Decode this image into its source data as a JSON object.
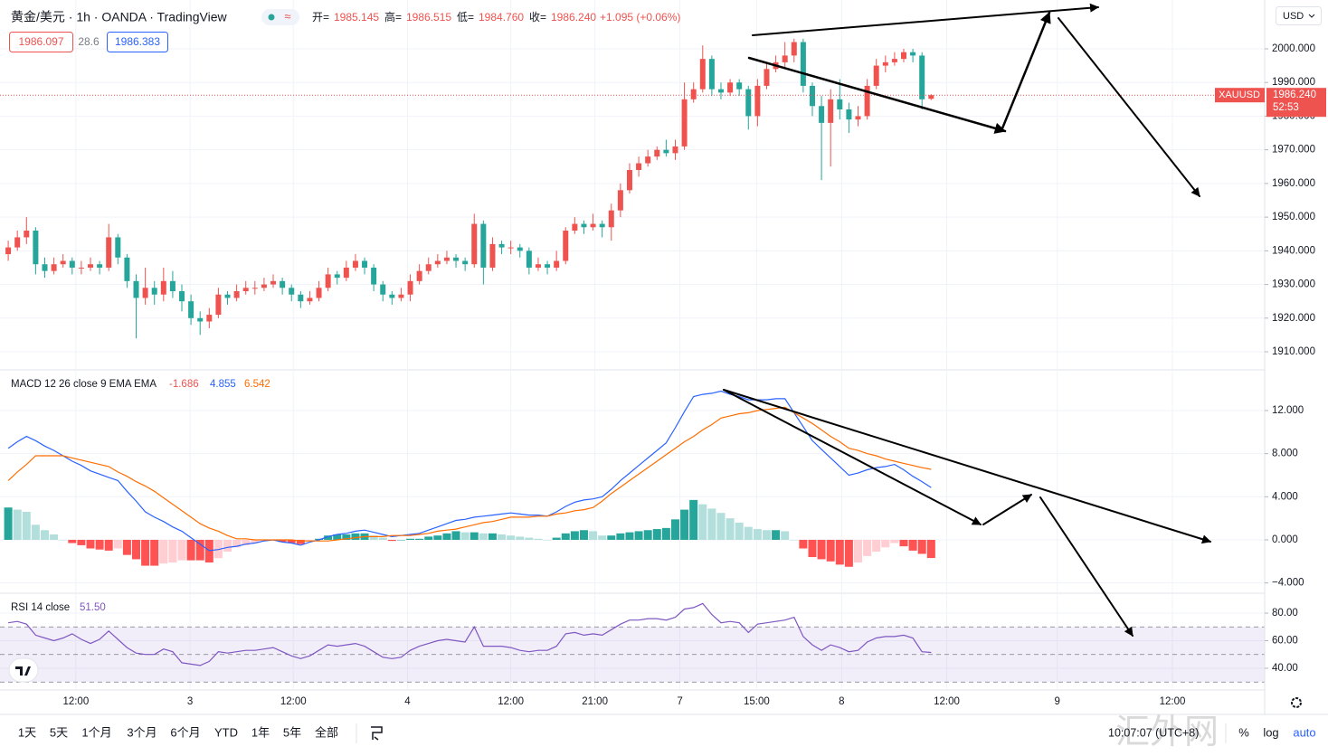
{
  "header": {
    "symbol": "黄金/美元 · 1h · OANDA · TradingView",
    "badge": "≈",
    "ohlc": [
      {
        "key": "开=",
        "value": "1985.145"
      },
      {
        "key": "高=",
        "value": "1986.515"
      },
      {
        "key": "低=",
        "value": "1984.760"
      },
      {
        "key": "收=",
        "value": "1986.240"
      }
    ],
    "change": "+1.095 (+0.06%)",
    "bid": "1986.097",
    "spread": "28.6",
    "ask": "1986.383",
    "currency": "USD"
  },
  "chart_data": [
    {
      "type": "candlestick",
      "grid": true,
      "up_color": "#ef5350",
      "down_color": "#26a69a",
      "xlim": [
        -0.9,
        137.5
      ],
      "ylim": [
        1904.9,
        2014.5
      ],
      "xticks": [
        {
          "value": 7.4,
          "label": "12:00"
        },
        {
          "value": 19.9,
          "label": "3"
        },
        {
          "value": 31.2,
          "label": "12:00"
        },
        {
          "value": 43.7,
          "label": "4"
        },
        {
          "value": 55.0,
          "label": "12:00"
        },
        {
          "value": 64.2,
          "label": "21:00"
        },
        {
          "value": 73.5,
          "label": "7"
        },
        {
          "value": 81.9,
          "label": "15:00"
        },
        {
          "value": 91.2,
          "label": "8"
        },
        {
          "value": 102.7,
          "label": "12:00"
        },
        {
          "value": 114.8,
          "label": "9"
        },
        {
          "value": 127.4,
          "label": "12:00"
        }
      ],
      "yticks": [
        {
          "value": 1910,
          "label": "1910.000"
        },
        {
          "value": 1920,
          "label": "1920.000"
        },
        {
          "value": 1930,
          "label": "1930.000"
        },
        {
          "value": 1940,
          "label": "1940.000"
        },
        {
          "value": 1950,
          "label": "1950.000"
        },
        {
          "value": 1960,
          "label": "1960.000"
        },
        {
          "value": 1970,
          "label": "1970.000"
        },
        {
          "value": 1980,
          "label": "1980.000"
        },
        {
          "value": 1990,
          "label": "1990.000"
        },
        {
          "value": 2000,
          "label": "2000.000"
        }
      ],
      "open": [
        1939,
        1941,
        1944,
        1946,
        1936,
        1934,
        1936,
        1937,
        1935,
        1935,
        1936,
        1935,
        1944,
        1938,
        1931,
        1926,
        1929,
        1927,
        1931,
        1928,
        1925,
        1920,
        1919,
        1921,
        1927,
        1926,
        1928,
        1929,
        1929,
        1930,
        1931,
        1929,
        1927,
        1925,
        1926,
        1929,
        1933,
        1932,
        1935,
        1937,
        1935,
        1930,
        1927,
        1926,
        1927,
        1931,
        1934,
        1936,
        1937,
        1938,
        1937,
        1936,
        1948,
        1935,
        1942,
        1941,
        1941,
        1940,
        1935,
        1936,
        1935,
        1937,
        1946,
        1948,
        1947,
        1948,
        1947,
        1952,
        1958,
        1964,
        1966,
        1968,
        1970,
        1969,
        1971,
        1985,
        1988,
        1997,
        1988,
        1987,
        1990,
        1988,
        1980,
        1989,
        1994,
        1996,
        1998,
        2002,
        1989,
        1983,
        1978,
        1985,
        1982,
        1979,
        1980,
        1989,
        1995,
        1996,
        1997,
        1999,
        1998,
        1985.145
      ],
      "high": [
        1943,
        1946,
        1950,
        1947,
        1938,
        1938,
        1939,
        1938,
        1937,
        1938,
        1937,
        1948,
        1945,
        1939,
        1933,
        1935,
        1931,
        1935,
        1934,
        1930,
        1927,
        1922,
        1923,
        1929,
        1928,
        1930,
        1931,
        1931,
        1932,
        1933,
        1932,
        1930,
        1928,
        1928,
        1931,
        1935,
        1934,
        1937,
        1939,
        1938,
        1936,
        1931,
        1928,
        1929,
        1933,
        1936,
        1938,
        1939,
        1940,
        1939,
        1938,
        1951,
        1949,
        1944,
        1943,
        1943,
        1942,
        1941,
        1938,
        1937,
        1940,
        1947,
        1950,
        1949,
        1951,
        1949,
        1954,
        1960,
        1966,
        1968,
        1970,
        1971,
        1973,
        1973,
        1990,
        1990,
        2001,
        1998,
        1990,
        1991,
        1991,
        1989,
        1991,
        1996,
        1998,
        2002,
        2003,
        2003,
        1990,
        1986,
        1988,
        1991,
        1984,
        1983,
        1991,
        1997,
        1998,
        1999,
        2000,
        2000,
        1999,
        1986.515
      ],
      "low": [
        1937,
        1940,
        1942,
        1933,
        1932,
        1933,
        1935,
        1933,
        1933,
        1934,
        1933,
        1934,
        1936,
        1929,
        1914,
        1924,
        1924,
        1925,
        1926,
        1922,
        1918,
        1915,
        1917,
        1920,
        1924,
        1925,
        1927,
        1927,
        1928,
        1929,
        1927,
        1925,
        1923,
        1924,
        1925,
        1928,
        1930,
        1931,
        1934,
        1933,
        1928,
        1925,
        1924,
        1925,
        1925,
        1930,
        1933,
        1935,
        1936,
        1935,
        1934,
        1935,
        1930,
        1934,
        1939,
        1939,
        1938,
        1933,
        1934,
        1933,
        1934,
        1936,
        1945,
        1945,
        1946,
        1944,
        1943,
        1950,
        1957,
        1962,
        1965,
        1967,
        1968,
        1967,
        1970,
        1984,
        1987,
        1986,
        1985,
        1986,
        1986,
        1976,
        1977,
        1988,
        1993,
        1994,
        1996,
        1987,
        1980,
        1961,
        1965,
        1979,
        1975,
        1977,
        1979,
        1988,
        1993,
        1995,
        1996,
        1996,
        1982,
        1984.76
      ],
      "close": [
        1941,
        1944,
        1946,
        1936,
        1934,
        1936,
        1937,
        1935,
        1935,
        1936,
        1935,
        1944,
        1938,
        1931,
        1926,
        1929,
        1927,
        1931,
        1928,
        1925,
        1920,
        1919,
        1921,
        1927,
        1926,
        1928,
        1929,
        1929,
        1930,
        1931,
        1929,
        1927,
        1925,
        1926,
        1929,
        1933,
        1932,
        1935,
        1937,
        1935,
        1930,
        1927,
        1926,
        1927,
        1931,
        1934,
        1936,
        1937,
        1938,
        1937,
        1936,
        1948,
        1935,
        1942,
        1941,
        1941,
        1940,
        1935,
        1936,
        1935,
        1937,
        1946,
        1948,
        1947,
        1948,
        1947,
        1952,
        1958,
        1964,
        1966,
        1968,
        1970,
        1969,
        1971,
        1985,
        1988,
        1997,
        1988,
        1987,
        1990,
        1988,
        1980,
        1989,
        1994,
        1996,
        1998,
        2002,
        1989,
        1983,
        1978,
        1985,
        1982,
        1979,
        1980,
        1989,
        1995,
        1996,
        1997,
        1999,
        1998,
        1985,
        1986.24
      ]
    },
    {
      "type": "macd",
      "grid": true,
      "title": "MACD 12 26 close 9 EMA EMA",
      "legend_values": [
        {
          "text": "-1.686",
          "color": "#ef5350"
        },
        {
          "text": "4.855",
          "color": "#2962ff"
        },
        {
          "text": "6.542",
          "color": "#ff6d00"
        }
      ],
      "ylim": [
        -4.87,
        15.69
      ],
      "yticks": [
        {
          "value": -4,
          "label": "−4.000"
        },
        {
          "value": 0,
          "label": "0.000"
        },
        {
          "value": 4,
          "label": "4.000"
        },
        {
          "value": 8,
          "label": "8.000"
        },
        {
          "value": 12,
          "label": "12.000"
        }
      ],
      "series": [
        {
          "color": "#2962ff",
          "values": [
            8.5,
            9.1,
            9.6,
            9.2,
            8.7,
            8.3,
            7.8,
            7.3,
            6.9,
            6.4,
            6.1,
            5.8,
            5.5,
            4.5,
            3.6,
            2.6,
            2.1,
            1.7,
            1.2,
            0.8,
            0.2,
            -0.4,
            -1.0,
            -0.9,
            -0.7,
            -0.6,
            -0.4,
            -0.3,
            -0.1,
            0,
            -0.2,
            -0.3,
            -0.5,
            -0.2,
            0,
            0.3,
            0.5,
            0.6,
            0.8,
            0.9,
            0.7,
            0.5,
            0.3,
            0.4,
            0.5,
            0.6,
            0.9,
            1.2,
            1.5,
            1.8,
            1.9,
            2.1,
            2.2,
            2.3,
            2.4,
            2.5,
            2.4,
            2.3,
            2.3,
            2.2,
            2.6,
            3.1,
            3.5,
            3.7,
            3.8,
            4.0,
            4.7,
            5.5,
            6.2,
            6.9,
            7.6,
            8.3,
            9.0,
            10.4,
            11.9,
            13.3,
            13.5,
            13.6,
            13.8,
            13.5,
            13.3,
            13.0,
            13.0,
            13.0,
            13.1,
            13.1,
            11.8,
            10.5,
            9.2,
            8.4,
            7.6,
            6.8,
            6.0,
            6.2,
            6.5,
            6.7,
            6.8,
            7.0,
            6.5,
            5.9,
            5.4,
            4.855
          ]
        },
        {
          "color": "#ff6d00",
          "values": [
            5.5,
            6.3,
            7.0,
            7.8,
            7.8,
            7.8,
            7.8,
            7.6,
            7.4,
            7.2,
            7.0,
            6.8,
            6.3,
            5.9,
            5.4,
            5.0,
            4.5,
            3.9,
            3.3,
            2.7,
            2.1,
            1.5,
            1.1,
            0.8,
            0.4,
            0.1,
            0.1,
            0,
            0,
            0,
            0,
            0,
            -0.1,
            -0.1,
            -0.1,
            -0.1,
            0,
            0.1,
            0.2,
            0.3,
            0.3,
            0.3,
            0.4,
            0.4,
            0.4,
            0.5,
            0.6,
            0.8,
            0.9,
            1.0,
            1.2,
            1.4,
            1.6,
            1.7,
            1.9,
            2.1,
            2.1,
            2.1,
            2.2,
            2.2,
            2.4,
            2.5,
            2.7,
            2.8,
            3.0,
            3.6,
            4.3,
            4.9,
            5.5,
            6.1,
            6.7,
            7.3,
            7.9,
            8.5,
            9.1,
            9.6,
            10.2,
            10.7,
            11.3,
            11.5,
            11.7,
            11.8,
            12.0,
            12.1,
            12.2,
            12.3,
            11.8,
            11.3,
            10.8,
            10.2,
            9.6,
            9.1,
            8.5,
            8.3,
            8.0,
            7.8,
            7.5,
            7.3,
            7.1,
            6.9,
            6.7,
            6.542
          ]
        }
      ],
      "histogram": {
        "colors": [
          "#26a69a",
          "#b2dfdb",
          "#ff5252",
          "#ffcdd2"
        ],
        "values": [
          3.0,
          2.8,
          2.6,
          1.4,
          0.9,
          0.5,
          0,
          -0.3,
          -0.5,
          -0.8,
          -0.9,
          -1.0,
          -0.8,
          -1.4,
          -1.8,
          -2.4,
          -2.4,
          -2.2,
          -2.1,
          -1.9,
          -1.9,
          -1.9,
          -2.1,
          -1.7,
          -1.1,
          -0.7,
          -0.5,
          -0.3,
          -0.1,
          0,
          -0.2,
          -0.3,
          -0.4,
          -0.1,
          0.1,
          0.4,
          0.5,
          0.5,
          0.6,
          0.6,
          0.4,
          0.2,
          -0.1,
          0,
          0.1,
          0.1,
          0.3,
          0.4,
          0.6,
          0.8,
          0.7,
          0.7,
          0.6,
          0.6,
          0.5,
          0.4,
          0.3,
          0.2,
          0.1,
          0,
          0.2,
          0.6,
          0.8,
          0.9,
          0.8,
          0.4,
          0.4,
          0.6,
          0.7,
          0.8,
          0.9,
          1.0,
          1.1,
          1.9,
          2.8,
          3.7,
          3.3,
          2.9,
          2.5,
          2.0,
          1.6,
          1.2,
          1.0,
          0.9,
          0.9,
          0.8,
          0,
          -0.8,
          -1.6,
          -1.8,
          -2.0,
          -2.3,
          -2.5,
          -2.1,
          -1.5,
          -1.1,
          -0.7,
          -0.3,
          -0.6,
          -1.0,
          -1.3,
          -1.686
        ]
      }
    },
    {
      "type": "rsi",
      "grid": true,
      "title": "RSI 14 close",
      "value_label": "51.50",
      "color": "#7e57c2",
      "band_color": "#7e57c2",
      "levels": [
        70,
        50,
        30
      ],
      "ylim": [
        24.9,
        93.8
      ],
      "yticks": [
        {
          "value": 40,
          "label": "40.00"
        },
        {
          "value": 60,
          "label": "60.00"
        },
        {
          "value": 80,
          "label": "80.00"
        }
      ],
      "values": [
        73,
        74,
        72,
        64,
        62,
        60,
        62,
        65,
        61,
        58,
        61,
        67,
        61,
        55,
        51,
        50,
        50,
        54,
        52,
        44,
        43,
        42,
        45,
        52,
        51,
        52,
        53,
        53,
        54,
        55,
        52,
        49,
        47,
        49,
        53,
        57,
        56,
        57,
        58,
        56,
        52,
        48,
        47,
        48,
        53,
        56,
        58,
        60,
        61,
        60,
        59,
        70,
        56,
        56,
        56,
        55,
        53,
        52,
        53,
        53,
        56,
        65,
        66,
        64,
        65,
        64,
        68,
        72,
        75,
        75,
        76,
        76,
        75,
        77,
        83,
        84,
        87,
        79,
        73,
        74,
        73,
        66,
        72,
        73,
        74,
        75,
        77,
        63,
        57,
        53,
        57,
        55,
        52,
        53,
        59,
        62,
        63,
        63,
        64,
        62,
        52,
        51.5
      ]
    }
  ],
  "price_label": {
    "symbol": "XAUUSD",
    "price": "1986.240",
    "countdown": "52:53"
  },
  "toolbar": {
    "ranges": [
      "1天",
      "5天",
      "1个月",
      "3个月",
      "6个月",
      "YTD",
      "1年",
      "5年",
      "全部"
    ],
    "clock": "10:07:07 (UTC+8)",
    "percent": "%",
    "log": "log",
    "auto": "auto"
  },
  "watermark": "汇外网"
}
